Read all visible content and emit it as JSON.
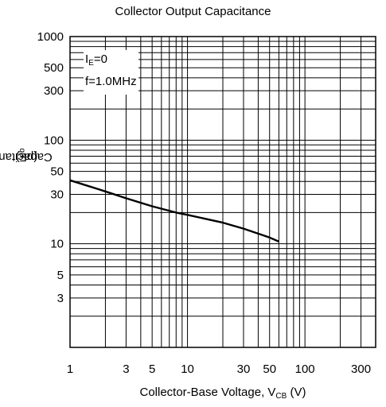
{
  "chart_data": {
    "type": "line",
    "title": "Collector Output Capacitance",
    "xlabel": {
      "main": "Collector-Base Voltage, V",
      "sub": "CB",
      "suffix": " (V)"
    },
    "ylabel": {
      "main": "Capacitance, C",
      "sub": "ob",
      "suffix": " (pF)"
    },
    "x_scale": "log",
    "y_scale": "log",
    "xlim": [
      1,
      400
    ],
    "ylim": [
      1,
      1000
    ],
    "grid": true,
    "x_ticks": [
      1,
      3,
      5,
      10,
      30,
      50,
      100,
      300
    ],
    "x_tick_labels": [
      "1",
      "3",
      "5",
      "10",
      "30",
      "50",
      "100",
      "300"
    ],
    "y_ticks": [
      3,
      5,
      10,
      30,
      50,
      100,
      300,
      500,
      1000
    ],
    "y_tick_labels": [
      "3",
      "5",
      "10",
      "30",
      "50",
      "100",
      "300",
      "500",
      "1000"
    ],
    "annotations": [
      {
        "main": "I",
        "sub": "E",
        "suffix": "=0"
      },
      {
        "main": "f=1.0MHz",
        "sub": "",
        "suffix": ""
      }
    ],
    "series": [
      {
        "color": "#000000",
        "x": [
          1,
          2,
          3,
          5,
          8,
          10,
          20,
          30,
          50,
          60
        ],
        "y": [
          41,
          32,
          27.5,
          23,
          20,
          19,
          16,
          14,
          11.5,
          10.5
        ]
      }
    ]
  }
}
